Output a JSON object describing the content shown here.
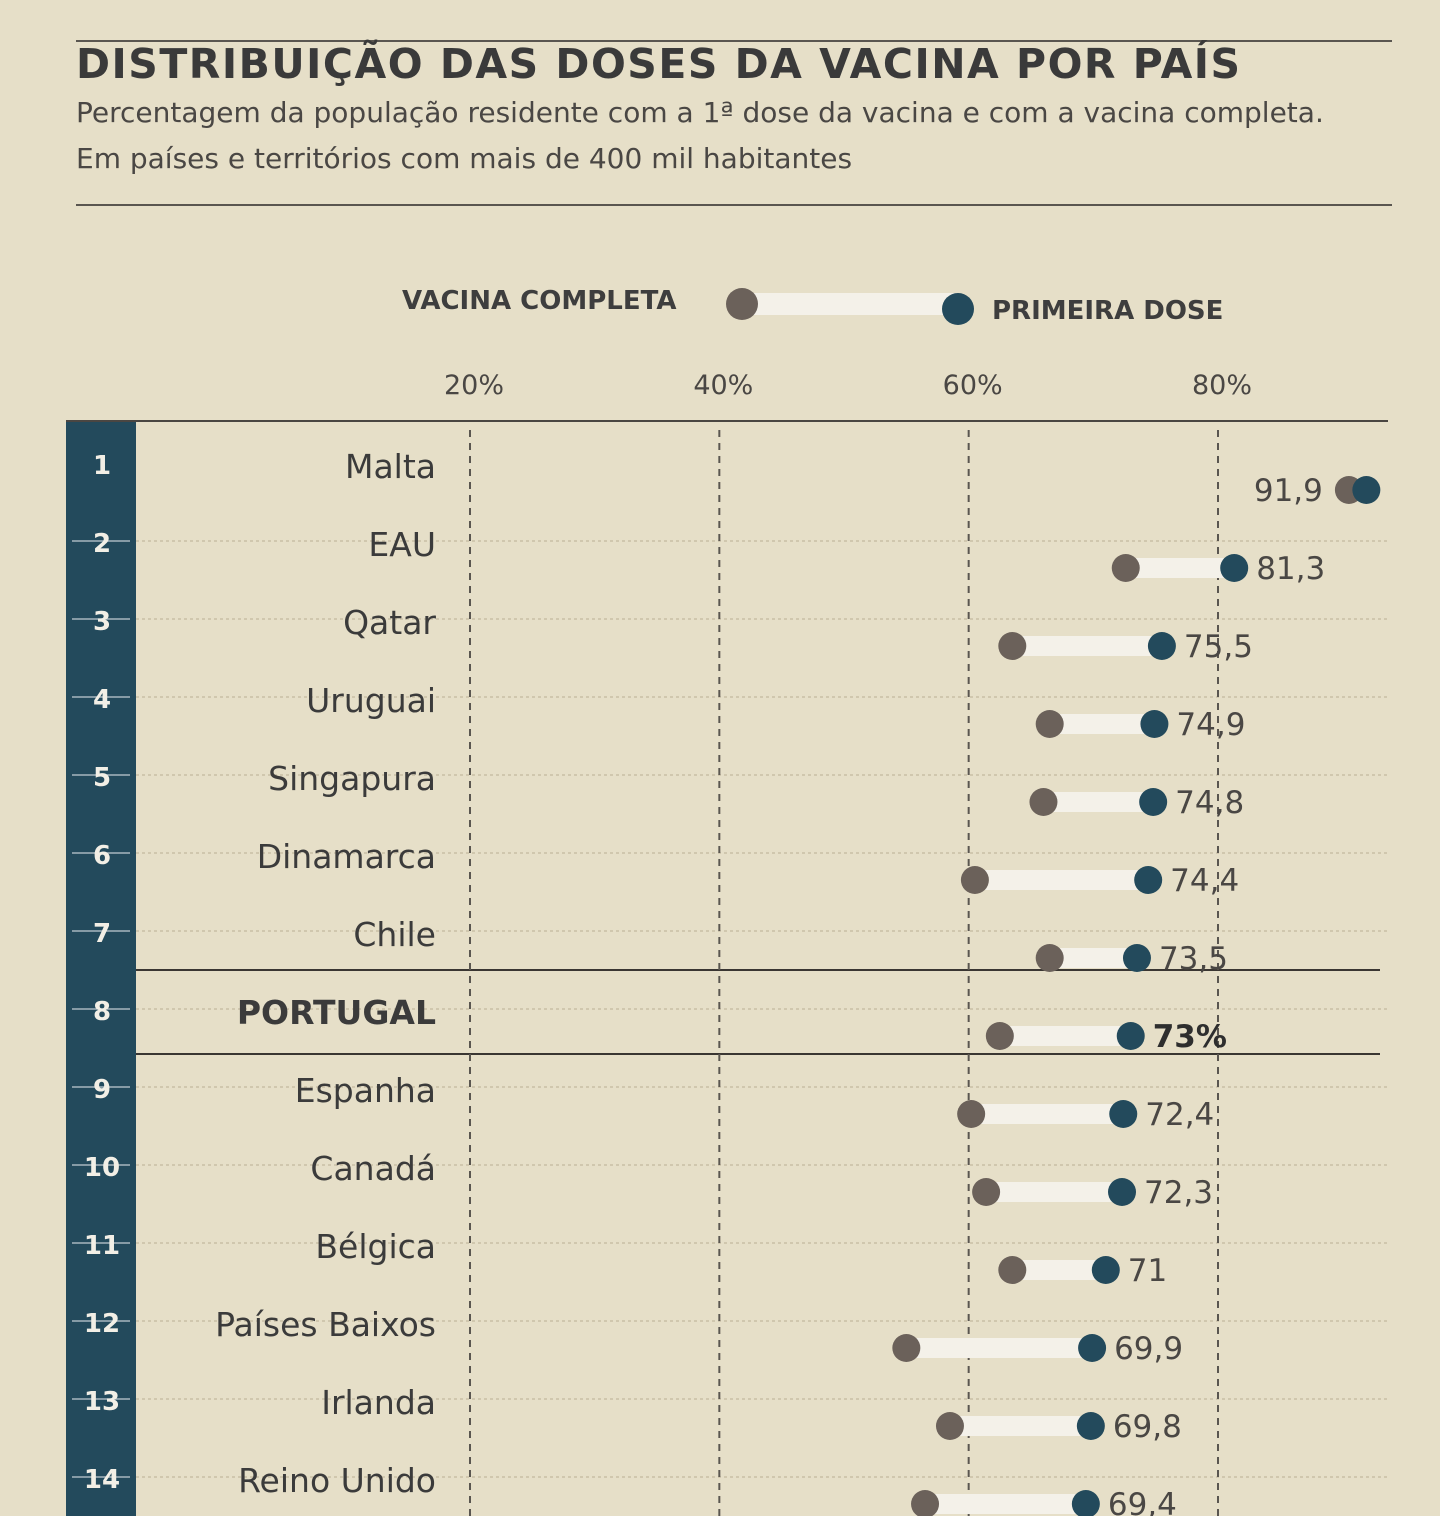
{
  "header": {
    "title": "DISTRIBUIÇÃO DAS DOSES DA VACINA POR PAÍS",
    "subtitle_line1": "Percentagem da população residente com a 1ª dose da vacina e com a vacina completa.",
    "subtitle_line2": "Em países e territórios com mais de 400 mil habitantes"
  },
  "legend": {
    "complete_label": "VACINA COMPLETA",
    "first_label": "PRIMEIRA DOSE",
    "placement": "top-center"
  },
  "colors": {
    "complete_dot": "#6b615a",
    "first_dot": "#234a5c",
    "connector": "#f4f1e9",
    "rank_band": "#234a5c",
    "background": "#e6dfc8"
  },
  "chart_data": {
    "type": "dumbbell",
    "title": "DISTRIBUIÇÃO DAS DOSES DA VACINA POR PAÍS",
    "x_ticks": [
      20,
      40,
      60,
      80
    ],
    "x_tick_labels": [
      "20%",
      "40%",
      "60%",
      "80%"
    ],
    "xlim": [
      20,
      93
    ],
    "grid": true,
    "highlight": "PORTUGAL",
    "rows": [
      {
        "rank": "1",
        "country": "Malta",
        "complete": 90.5,
        "first": 91.9,
        "label": "91,9"
      },
      {
        "rank": "2",
        "country": "EAU",
        "complete": 72.6,
        "first": 81.3,
        "label": "81,3"
      },
      {
        "rank": "3",
        "country": "Qatar",
        "complete": 63.5,
        "first": 75.5,
        "label": "75,5"
      },
      {
        "rank": "4",
        "country": "Uruguai",
        "complete": 66.5,
        "first": 74.9,
        "label": "74,9"
      },
      {
        "rank": "5",
        "country": "Singapura",
        "complete": 66.0,
        "first": 74.8,
        "label": "74,8"
      },
      {
        "rank": "6",
        "country": "Dinamarca",
        "complete": 60.5,
        "first": 74.4,
        "label": "74,4"
      },
      {
        "rank": "7",
        "country": "Chile",
        "complete": 66.5,
        "first": 73.5,
        "label": "73,5"
      },
      {
        "rank": "8",
        "country": "PORTUGAL",
        "complete": 62.5,
        "first": 73.0,
        "label": "73%"
      },
      {
        "rank": "9",
        "country": "Espanha",
        "complete": 60.2,
        "first": 72.4,
        "label": "72,4"
      },
      {
        "rank": "10",
        "country": "Canadá",
        "complete": 61.4,
        "first": 72.3,
        "label": "72,3"
      },
      {
        "rank": "11",
        "country": "Bélgica",
        "complete": 63.5,
        "first": 71.0,
        "label": "71"
      },
      {
        "rank": "12",
        "country": "Países Baixos",
        "complete": 55.0,
        "first": 69.9,
        "label": "69,9"
      },
      {
        "rank": "13",
        "country": "Irlanda",
        "complete": 58.5,
        "first": 69.8,
        "label": "69,8"
      },
      {
        "rank": "14",
        "country": "Reino Unido",
        "complete": 56.5,
        "first": 69.4,
        "label": "69,4"
      }
    ]
  }
}
